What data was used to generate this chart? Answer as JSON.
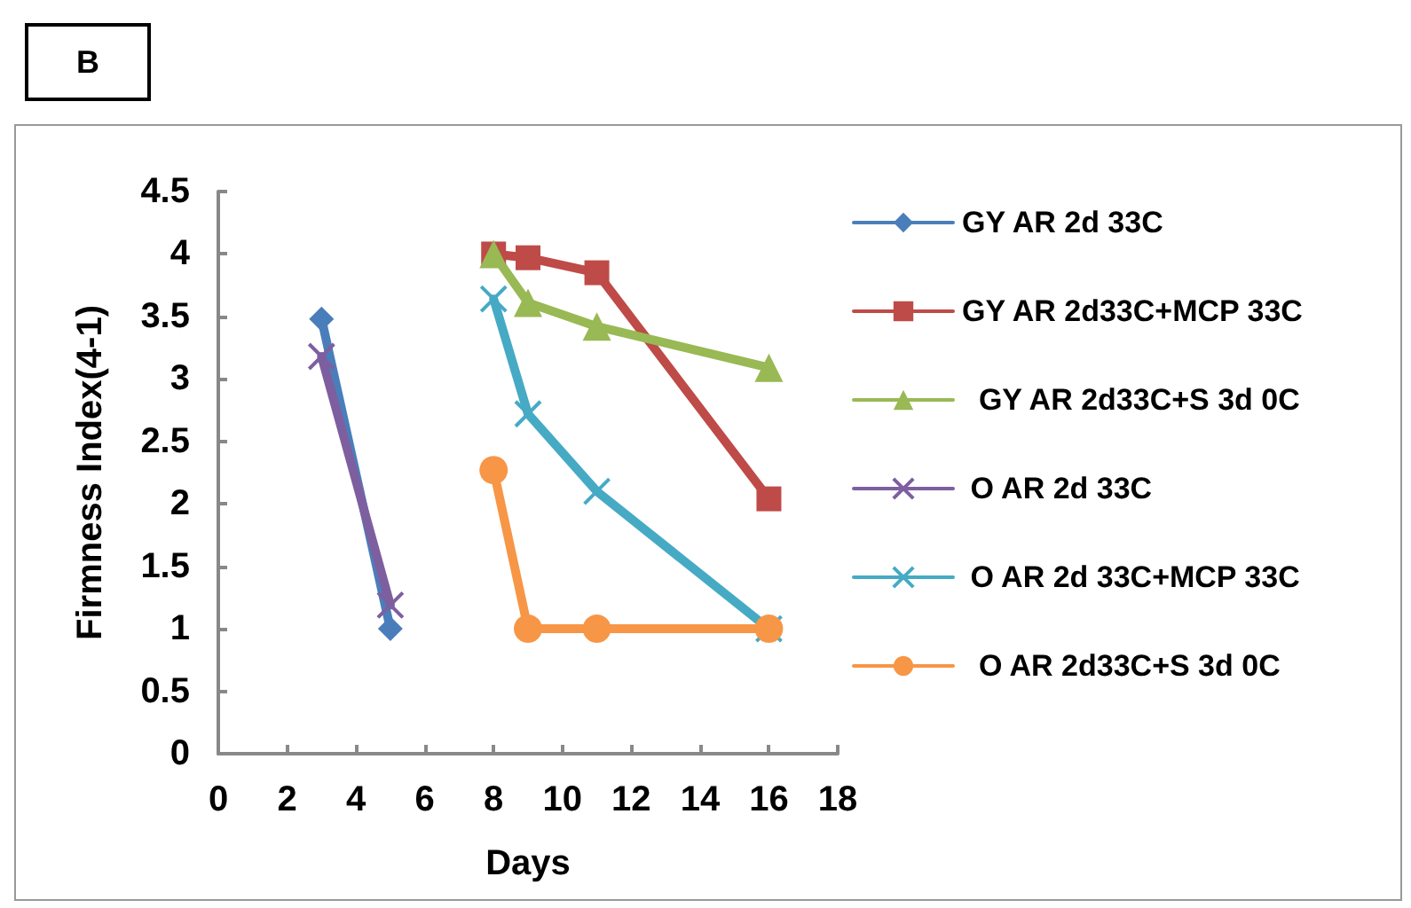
{
  "chart_data": {
    "type": "line",
    "title": "B",
    "xlabel": "Days",
    "ylabel": "Firmness Index(4-1)",
    "xlim": [
      0,
      18
    ],
    "xticks": [
      0,
      2,
      4,
      6,
      8,
      10,
      12,
      14,
      16,
      18
    ],
    "ylim": [
      0,
      4.5
    ],
    "yticks": [
      0,
      0.5,
      1,
      1.5,
      2,
      2.5,
      3,
      3.5,
      4,
      4.5
    ],
    "grid": false,
    "legend": "right",
    "line_style": "solid",
    "series": [
      {
        "name": "GY AR 2d 33C",
        "color": "#4a7ebb",
        "marker": "diamond",
        "x": [
          3,
          5
        ],
        "values": [
          3.48,
          1.0
        ]
      },
      {
        "name": "GY AR 2d33C+MCP 33C",
        "color": "#be4b48",
        "marker": "square",
        "x": [
          8,
          9,
          11,
          16
        ],
        "values": [
          4.0,
          3.97,
          3.85,
          2.04
        ]
      },
      {
        "name": "  GY AR 2d33C+S 3d 0C",
        "color": "#98b954",
        "marker": "triangle",
        "x": [
          8,
          9,
          11,
          16
        ],
        "values": [
          4.0,
          3.61,
          3.42,
          3.09
        ]
      },
      {
        "name": " O AR 2d 33C",
        "color": "#7d5fa0",
        "marker": "cross",
        "x": [
          3,
          5
        ],
        "values": [
          3.18,
          1.19
        ]
      },
      {
        "name": " O AR 2d 33C+MCP 33C",
        "color": "#46aac5",
        "marker": "cross",
        "x": [
          8,
          9,
          11,
          16
        ],
        "values": [
          3.64,
          2.72,
          2.1,
          1.0
        ]
      },
      {
        "name": "  O AR 2d33C+S 3d 0C",
        "color": "#f79646",
        "marker": "circle",
        "x": [
          8,
          9,
          11,
          16
        ],
        "values": [
          2.27,
          1.0,
          1.0,
          1.0
        ]
      }
    ]
  }
}
